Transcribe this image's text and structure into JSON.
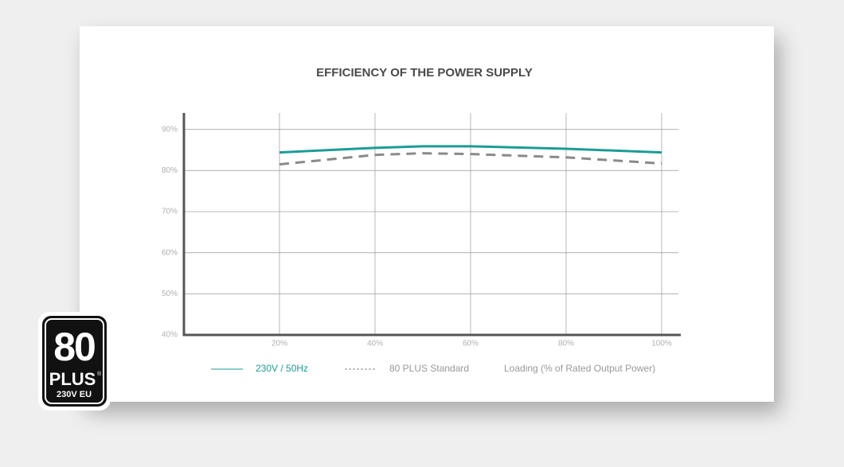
{
  "chart_data": {
    "type": "line",
    "title": "EFFICIENCY OF THE POWER SUPPLY",
    "x_label": "Loading (% of Rated Output Power)",
    "x": [
      20,
      40,
      50,
      60,
      80,
      100
    ],
    "series": [
      {
        "name": "230V / 50Hz",
        "color": "#1b9c97",
        "dashed": false,
        "values": [
          84.4,
          85.5,
          85.9,
          85.9,
          85.3,
          84.4
        ]
      },
      {
        "name": "80 PLUS Standard",
        "color": "#8a8a8a",
        "dashed": true,
        "values": [
          81.5,
          83.8,
          84.2,
          84.0,
          83.2,
          81.7
        ]
      }
    ],
    "xlim": [
      0,
      104
    ],
    "ylim": [
      40,
      94
    ],
    "xticks": [
      {
        "value": 20,
        "label": "20%"
      },
      {
        "value": 40,
        "label": "40%"
      },
      {
        "value": 60,
        "label": "60%"
      },
      {
        "value": 80,
        "label": "80%"
      },
      {
        "value": 100,
        "label": "100%"
      }
    ],
    "yticks": [
      {
        "value": 40,
        "label": "40%"
      },
      {
        "value": 50,
        "label": "50%"
      },
      {
        "value": 60,
        "label": "60%"
      },
      {
        "value": 70,
        "label": "70%"
      },
      {
        "value": 80,
        "label": "80%"
      },
      {
        "value": 90,
        "label": "90%"
      }
    ],
    "grid": true,
    "legend": "bottom"
  },
  "badge": {
    "number": "80",
    "word": "PLUS",
    "trademark": "®",
    "region": "230V EU"
  }
}
